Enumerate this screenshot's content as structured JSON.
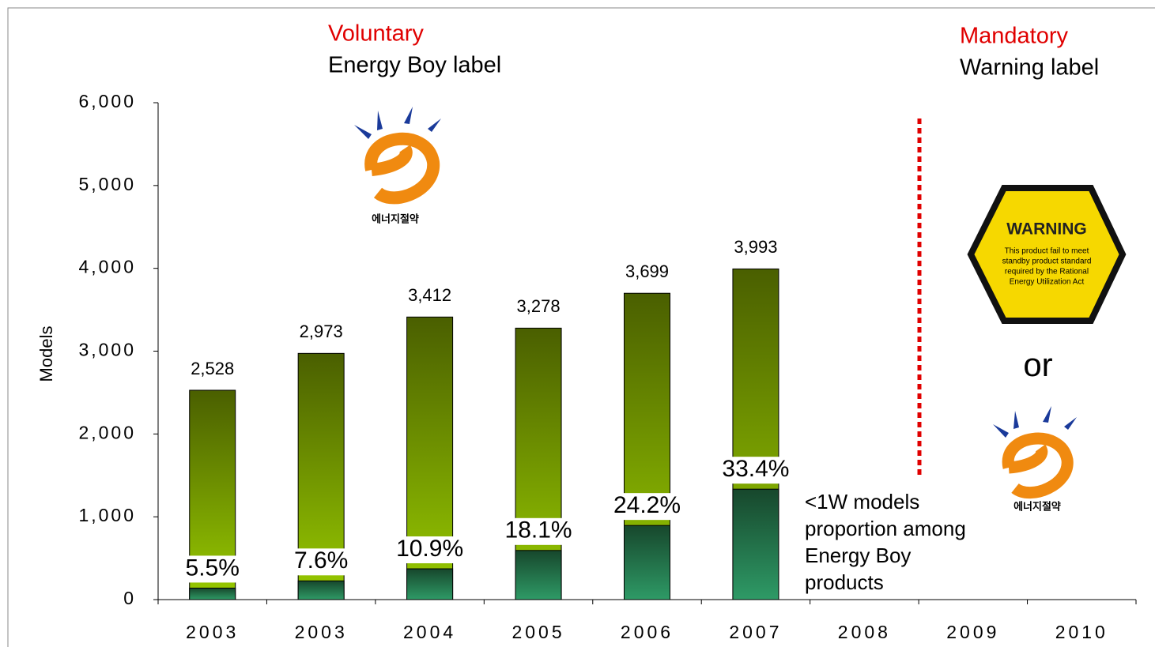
{
  "chart_data": {
    "type": "bar",
    "ylabel": "Models",
    "categories": [
      "2003",
      "2003",
      "2004",
      "2005",
      "2006",
      "2007",
      "2008",
      "2009",
      "2010"
    ],
    "series": [
      {
        "color": "#99cc00",
        "values": [
          2528,
          2973,
          3412,
          3278,
          3699,
          3993,
          null,
          null,
          null
        ],
        "value_labels": [
          "2,528",
          "2,973",
          "3,412",
          "3,278",
          "3,699",
          "3,993",
          null,
          null,
          null
        ]
      },
      {
        "name": "<1W models proportion among Energy Boy products",
        "color": "#2e9a66",
        "values": [
          5.5,
          7.6,
          10.9,
          18.1,
          24.2,
          33.4,
          null,
          null,
          null
        ],
        "value_labels": [
          "5.5%",
          "7.6%",
          "10.9%",
          "18.1%",
          "24.2%",
          "33.4%",
          null,
          null,
          null
        ]
      }
    ],
    "ylim": [
      0,
      6000
    ],
    "yticks": [
      0,
      {
        "value": 1000,
        "label": "1,000"
      },
      {
        "value": 2000,
        "label": "2,000"
      },
      {
        "value": 3000,
        "label": "3,000"
      },
      {
        "value": 4000,
        "label": "4,000"
      },
      {
        "value": 5000,
        "label": "5,000"
      },
      {
        "value": 6000,
        "label": "6,000"
      }
    ],
    "annotations": {
      "voluntary": "Voluntary",
      "voluntary_label": "Energy Boy label",
      "mandatory": "Mandatory",
      "mandatory_label": "Warning label",
      "or": "or",
      "logo_text": "에너지절약",
      "warning_title": "WARNING",
      "warning_lines": [
        "This product fail to meet",
        "standby product standard",
        "required by the Rational",
        "Energy Utilization Act"
      ]
    }
  }
}
